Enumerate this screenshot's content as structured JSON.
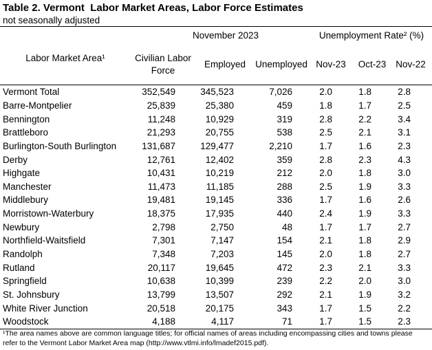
{
  "title": "Table 2. Vermont  Labor Market Areas, Labor Force Estimates",
  "subtitle": "not seasonally adjusted",
  "group_headers": {
    "november": "November 2023",
    "unemployment_rate": "Unemployment Rate² (%)"
  },
  "columns": {
    "area": "Labor Market Area¹",
    "force_line1": "Civilian Labor",
    "force_line2": "Force",
    "employed": "Employed",
    "unemployed": "Unemployed",
    "nov23": "Nov-23",
    "oct23": "Oct-23",
    "nov22": "Nov-22"
  },
  "rows": [
    [
      "Vermont Total",
      "352,549",
      "345,523",
      "7,026",
      "2.0",
      "1.8",
      "2.8"
    ],
    [
      "Barre-Montpelier",
      "25,839",
      "25,380",
      "459",
      "1.8",
      "1.7",
      "2.5"
    ],
    [
      "Bennington",
      "11,248",
      "10,929",
      "319",
      "2.8",
      "2.2",
      "3.4"
    ],
    [
      "Brattleboro",
      "21,293",
      "20,755",
      "538",
      "2.5",
      "2.1",
      "3.1"
    ],
    [
      "Burlington-South Burlington",
      "131,687",
      "129,477",
      "2,210",
      "1.7",
      "1.6",
      "2.3"
    ],
    [
      "Derby",
      "12,761",
      "12,402",
      "359",
      "2.8",
      "2.3",
      "4.3"
    ],
    [
      "Highgate",
      "10,431",
      "10,219",
      "212",
      "2.0",
      "1.8",
      "3.0"
    ],
    [
      "Manchester",
      "11,473",
      "11,185",
      "288",
      "2.5",
      "1.9",
      "3.3"
    ],
    [
      "Middlebury",
      "19,481",
      "19,145",
      "336",
      "1.7",
      "1.6",
      "2.6"
    ],
    [
      "Morristown-Waterbury",
      "18,375",
      "17,935",
      "440",
      "2.4",
      "1.9",
      "3.3"
    ],
    [
      "Newbury",
      "2,798",
      "2,750",
      "48",
      "1.7",
      "1.7",
      "2.7"
    ],
    [
      "Northfield-Waitsfield",
      "7,301",
      "7,147",
      "154",
      "2.1",
      "1.8",
      "2.9"
    ],
    [
      "Randolph",
      "7,348",
      "7,203",
      "145",
      "2.0",
      "1.8",
      "2.7"
    ],
    [
      "Rutland",
      "20,117",
      "19,645",
      "472",
      "2.3",
      "2.1",
      "3.3"
    ],
    [
      "Springfield",
      "10,638",
      "10,399",
      "239",
      "2.2",
      "2.0",
      "3.0"
    ],
    [
      "St. Johnsbury",
      "13,799",
      "13,507",
      "292",
      "2.1",
      "1.9",
      "3.2"
    ],
    [
      "White River Junction",
      "20,518",
      "20,175",
      "343",
      "1.7",
      "1.5",
      "2.2"
    ],
    [
      "Woodstock",
      "4,188",
      "4,117",
      "71",
      "1.7",
      "1.5",
      "2.3"
    ]
  ],
  "footnote": "¹The area names above are common language titles; for official names of areas including encompassing cities and towns please refer to the Vermont Labor Market Area map (http://www.vtlmi.info/lmadef2015.pdf)."
}
